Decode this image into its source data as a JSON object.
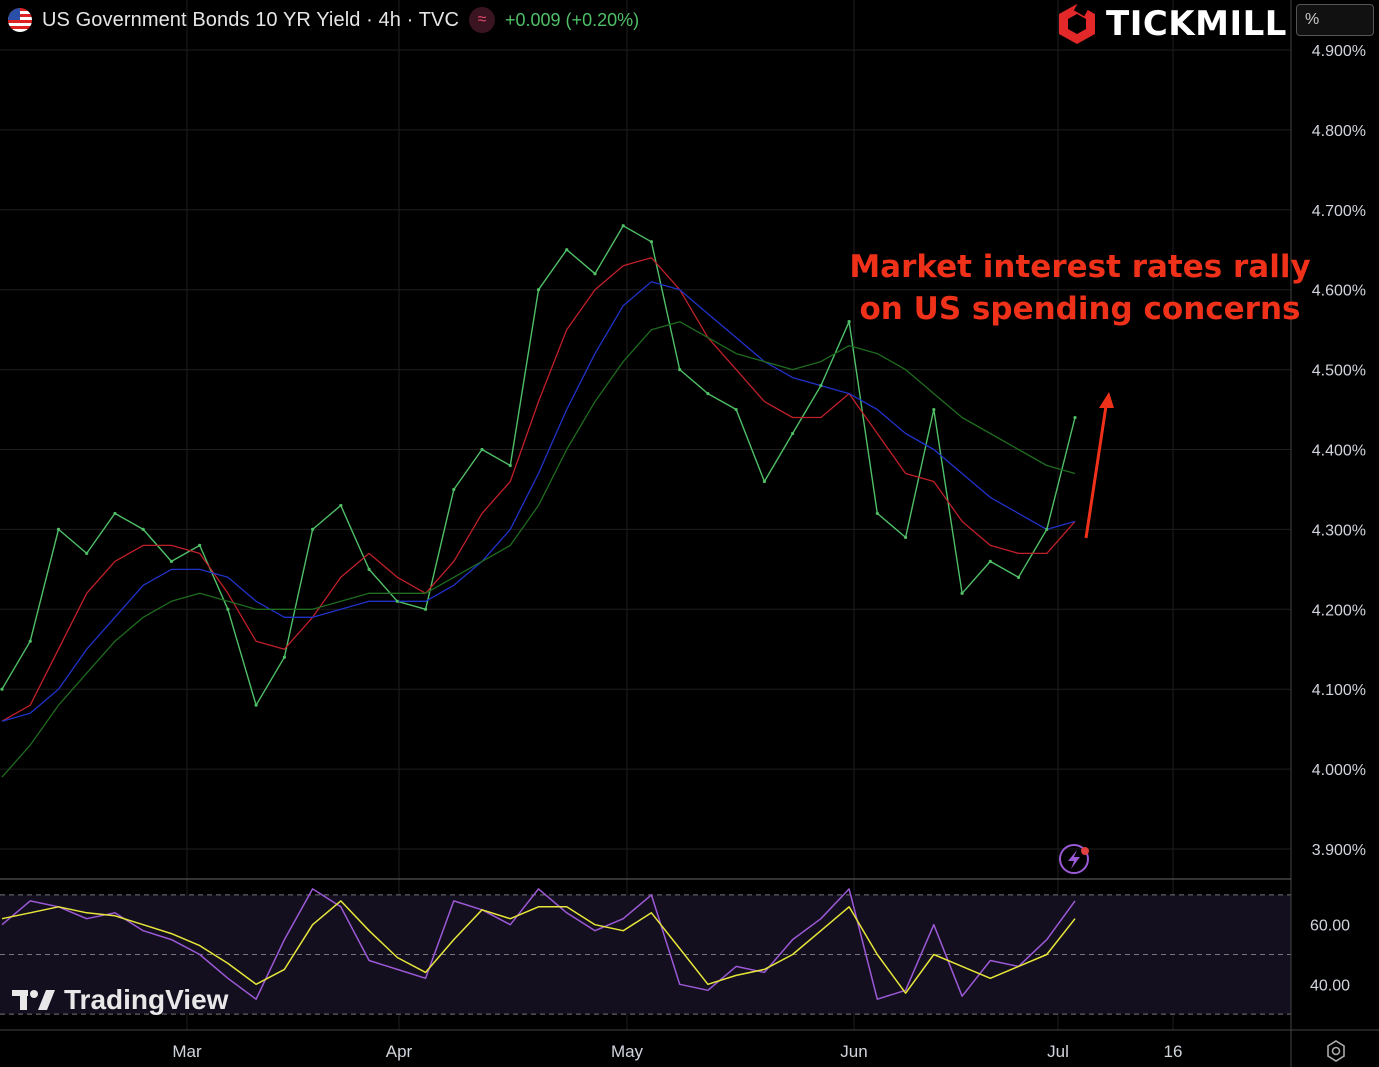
{
  "header": {
    "title": "US Government Bonds 10 YR Yield · 4h · TVC",
    "badge_icon": "approx-icon",
    "change": "+0.009 (+0.20%)"
  },
  "brand": {
    "name": "TICKMILL",
    "logo_icon": "tickmill-logo-icon"
  },
  "unit_label": "%",
  "annotation": {
    "line1": "Market interest rates rally",
    "line2": "on US spending concerns",
    "color": "#f0311a"
  },
  "watermark": {
    "name": "TradingView"
  },
  "colors": {
    "up": "#4fbf67",
    "ma_red": "#c0202a",
    "ma_blue": "#2032c8",
    "ma_green": "#1f6b1f",
    "rsi": "#9b59d6",
    "rsi_signal": "#e6e63a"
  },
  "chart_data": [
    {
      "type": "line",
      "title": "US Government Bonds 10 YR Yield · 4h · TVC",
      "ylim": [
        3.85,
        4.95
      ],
      "yticks": [
        "4.900%",
        "4.800%",
        "4.700%",
        "4.600%",
        "4.500%",
        "4.400%",
        "4.300%",
        "4.200%",
        "4.100%",
        "4.000%",
        "3.900%"
      ],
      "xticks": [
        "Mar",
        "Apr",
        "May",
        "Jun",
        "Jul",
        "16"
      ],
      "x": [
        "Feb 1",
        "Feb 5",
        "Feb 9",
        "Feb 13",
        "Feb 17",
        "Feb 21",
        "Feb 25",
        "Mar 1",
        "Mar 5",
        "Mar 9",
        "Mar 13",
        "Mar 17",
        "Mar 21",
        "Mar 25",
        "Mar 29",
        "Apr 2",
        "Apr 6",
        "Apr 10",
        "Apr 14",
        "Apr 18",
        "Apr 22",
        "Apr 26",
        "Apr 30",
        "May 4",
        "May 8",
        "May 12",
        "May 16",
        "May 20",
        "May 24",
        "May 28",
        "Jun 1",
        "Jun 5",
        "Jun 9",
        "Jun 13",
        "Jun 17",
        "Jun 21",
        "Jun 25",
        "Jun 29",
        "Jul 2"
      ],
      "series": [
        {
          "values": [
            4.1,
            4.16,
            4.3,
            4.27,
            4.32,
            4.3,
            4.26,
            4.28,
            4.2,
            4.08,
            4.14,
            4.3,
            4.33,
            4.25,
            4.21,
            4.2,
            4.35,
            4.4,
            4.38,
            4.6,
            4.65,
            4.62,
            4.68,
            4.66,
            4.5,
            4.47,
            4.45,
            4.36,
            4.42,
            4.48,
            4.56,
            4.32,
            4.29,
            4.45,
            4.22,
            4.26,
            4.24,
            4.3,
            4.44
          ]
        },
        {
          "values": [
            4.06,
            4.08,
            4.15,
            4.22,
            4.26,
            4.28,
            4.28,
            4.27,
            4.22,
            4.16,
            4.15,
            4.19,
            4.24,
            4.27,
            4.24,
            4.22,
            4.26,
            4.32,
            4.36,
            4.46,
            4.55,
            4.6,
            4.63,
            4.64,
            4.6,
            4.54,
            4.5,
            4.46,
            4.44,
            4.44,
            4.47,
            4.42,
            4.37,
            4.36,
            4.31,
            4.28,
            4.27,
            4.27,
            4.31
          ]
        },
        {
          "values": [
            4.06,
            4.07,
            4.1,
            4.15,
            4.19,
            4.23,
            4.25,
            4.25,
            4.24,
            4.21,
            4.19,
            4.19,
            4.2,
            4.21,
            4.21,
            4.21,
            4.23,
            4.26,
            4.3,
            4.37,
            4.45,
            4.52,
            4.58,
            4.61,
            4.6,
            4.57,
            4.54,
            4.51,
            4.49,
            4.48,
            4.47,
            4.45,
            4.42,
            4.4,
            4.37,
            4.34,
            4.32,
            4.3,
            4.31
          ]
        },
        {
          "values": [
            3.99,
            4.03,
            4.08,
            4.12,
            4.16,
            4.19,
            4.21,
            4.22,
            4.21,
            4.2,
            4.2,
            4.2,
            4.21,
            4.22,
            4.22,
            4.22,
            4.24,
            4.26,
            4.28,
            4.33,
            4.4,
            4.46,
            4.51,
            4.55,
            4.56,
            4.54,
            4.52,
            4.51,
            4.5,
            4.51,
            4.53,
            4.52,
            4.5,
            4.47,
            4.44,
            4.42,
            4.4,
            4.38,
            4.37
          ]
        }
      ]
    },
    {
      "type": "line",
      "ylim": [
        25,
        75
      ],
      "yticks": [
        "60.00",
        "40.00"
      ],
      "levels": [
        70,
        50,
        30
      ],
      "x": [
        "Feb 1",
        "Feb 5",
        "Feb 9",
        "Feb 13",
        "Feb 17",
        "Feb 21",
        "Feb 25",
        "Mar 1",
        "Mar 5",
        "Mar 9",
        "Mar 13",
        "Mar 17",
        "Mar 21",
        "Mar 25",
        "Mar 29",
        "Apr 2",
        "Apr 6",
        "Apr 10",
        "Apr 14",
        "Apr 18",
        "Apr 22",
        "Apr 26",
        "Apr 30",
        "May 4",
        "May 8",
        "May 12",
        "May 16",
        "May 20",
        "May 24",
        "May 28",
        "Jun 1",
        "Jun 5",
        "Jun 9",
        "Jun 13",
        "Jun 17",
        "Jun 21",
        "Jun 25",
        "Jun 29",
        "Jul 2"
      ],
      "series": [
        {
          "values": [
            60,
            68,
            66,
            62,
            64,
            58,
            55,
            50,
            42,
            35,
            55,
            72,
            66,
            48,
            45,
            42,
            68,
            65,
            60,
            72,
            64,
            58,
            62,
            70,
            40,
            38,
            46,
            44,
            55,
            62,
            72,
            35,
            38,
            60,
            36,
            48,
            46,
            55,
            68
          ]
        },
        {
          "values": [
            62,
            64,
            66,
            64,
            63,
            60,
            57,
            53,
            47,
            40,
            45,
            60,
            68,
            58,
            49,
            44,
            55,
            65,
            62,
            66,
            66,
            60,
            58,
            64,
            52,
            40,
            43,
            45,
            50,
            58,
            66,
            50,
            37,
            50,
            46,
            42,
            46,
            50,
            62
          ]
        }
      ]
    }
  ]
}
